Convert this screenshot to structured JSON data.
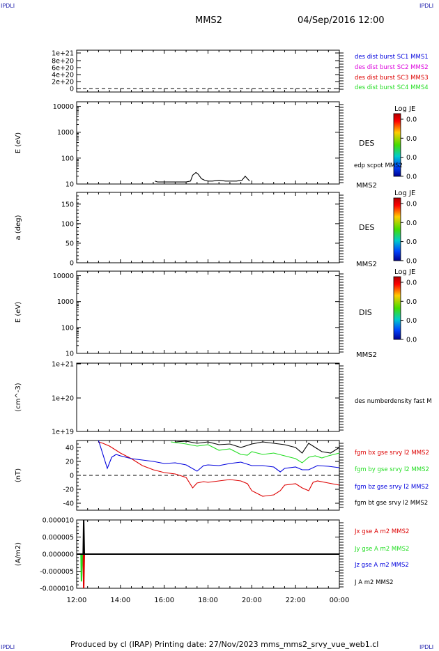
{
  "corner_labels": {
    "top_left": "IPDLI",
    "top_right": "IPDLI",
    "bottom_left": "IPDLI",
    "bottom_right": "IPDLI"
  },
  "header": {
    "spacecraft": "MMS2",
    "date": "04/Sep/2016 12:00"
  },
  "footer": {
    "text": "Produced by cl (IRAP)   Printing date: 27/Nov/2023   mms_mms2_srvy_vue_web1.cl"
  },
  "colors": {
    "black": "#000000",
    "red": "#dd0000",
    "green": "#22dd22",
    "blue": "#0000dd",
    "magenta": "#dd00dd"
  },
  "chart_data": [
    {
      "type": "line",
      "ylabel": "",
      "yticks": [
        "1e+21",
        "8e+20",
        "6e+20",
        "4e+20",
        "2e+20",
        "0"
      ],
      "series": [],
      "legend": [
        {
          "name": "des dist burst SC1 MMS1",
          "color": "#0000dd"
        },
        {
          "name": "des dist burst SC2 MMS2",
          "color": "#dd00dd"
        },
        {
          "name": "des dist burst SC3 MMS3",
          "color": "#dd0000"
        },
        {
          "name": "des dist burst SC4 MMS4",
          "color": "#22dd22"
        }
      ]
    },
    {
      "type": "line",
      "ylabel": "E (eV)",
      "yscale": "log",
      "yticks": [
        "10000",
        "1000",
        "100",
        "10"
      ],
      "ylim": [
        10,
        15000
      ],
      "right_label": "DES",
      "right_sublabel": "MMS2",
      "series": [
        {
          "name": "edp scpot MMS2",
          "color": "#000000",
          "x": [
            15.58,
            15.7,
            16.0,
            16.5,
            17.0,
            17.2,
            17.3,
            17.45,
            17.55,
            17.7,
            17.85,
            18.0,
            18.2,
            18.5,
            18.8,
            19.0,
            19.3,
            19.55,
            19.7,
            19.8,
            19.9
          ],
          "y": [
            13,
            12,
            12,
            12,
            12,
            13,
            22,
            28,
            24,
            16,
            14,
            13,
            13,
            14,
            13,
            13,
            13,
            14,
            20,
            16,
            13
          ]
        }
      ],
      "colorbar": {
        "title": "Log JE",
        "ticks": [
          "0.0",
          "0.0",
          "0.0",
          "0.0"
        ]
      }
    },
    {
      "type": "heatmap",
      "ylabel": "a (deg)",
      "yticks": [
        "150",
        "100",
        "50",
        "0"
      ],
      "ylim": [
        0,
        180
      ],
      "right_label": "DES",
      "right_sublabel": "MMS2",
      "colorbar": {
        "title": "Log JE",
        "ticks": [
          "0.0",
          "0.0",
          "0.0",
          "0.0"
        ]
      }
    },
    {
      "type": "heatmap",
      "ylabel": "E (eV)",
      "yscale": "log",
      "yticks": [
        "10000",
        "1000",
        "100",
        "10"
      ],
      "ylim": [
        10,
        15000
      ],
      "right_label": "DIS",
      "right_sublabel": "MMS2",
      "colorbar": {
        "title": "Log JE",
        "ticks": [
          "0.0",
          "0.0",
          "0.0",
          "0.0"
        ]
      }
    },
    {
      "type": "line",
      "ylabel": "(cm^-3)",
      "yscale": "log",
      "yticks": [
        "1e+21",
        "1e+20",
        "1e+19"
      ],
      "series": [],
      "legend": [
        {
          "name": "des numberdensity fast M",
          "color": "#000000"
        }
      ]
    },
    {
      "type": "line",
      "ylabel": "(nT)",
      "yticks": [
        "40",
        "20",
        "0",
        "-20",
        "-40"
      ],
      "ylim": [
        -50,
        50
      ],
      "series": [
        {
          "name": "fgm bx gse srvy l2 MMS2",
          "color": "#dd0000",
          "x": [
            13.0,
            13.2,
            13.5,
            13.8,
            14.0,
            14.5,
            15.0,
            15.5,
            16.0,
            16.5,
            17.0,
            17.3,
            17.5,
            17.8,
            18.0,
            18.5,
            19.0,
            19.5,
            19.8,
            20.0,
            20.5,
            21.0,
            21.3,
            21.5,
            22.0,
            22.3,
            22.6,
            22.8,
            23.0,
            23.5,
            24.0
          ],
          "y": [
            48,
            46,
            42,
            36,
            32,
            24,
            14,
            8,
            4,
            2,
            -3,
            -18,
            -11,
            -9,
            -10,
            -8,
            -6,
            -8,
            -12,
            -22,
            -30,
            -28,
            -22,
            -14,
            -12,
            -18,
            -22,
            -10,
            -8,
            -11,
            -14
          ]
        },
        {
          "name": "fgm by gse srvy l2 MMS2",
          "color": "#22dd22",
          "x": [
            16.3,
            16.8,
            17.0,
            17.5,
            18.0,
            18.5,
            19.0,
            19.5,
            19.8,
            20.0,
            20.5,
            21.0,
            21.5,
            22.0,
            22.3,
            22.6,
            22.9,
            23.2,
            23.5,
            24.0
          ],
          "y": [
            48,
            46,
            45,
            42,
            44,
            36,
            38,
            30,
            29,
            34,
            30,
            32,
            28,
            24,
            18,
            26,
            28,
            25,
            28,
            32
          ]
        },
        {
          "name": "fgm bz gse srvy l2 MMS2",
          "color": "#0000dd",
          "x": [
            13.0,
            13.1,
            13.4,
            13.6,
            13.8,
            14.0,
            14.5,
            15.0,
            15.5,
            16.0,
            16.5,
            17.0,
            17.5,
            17.8,
            18.0,
            18.5,
            19.0,
            19.5,
            20.0,
            20.5,
            21.0,
            21.3,
            21.5,
            22.0,
            22.3,
            22.6,
            23.0,
            23.5,
            24.0
          ],
          "y": [
            50,
            40,
            10,
            26,
            30,
            28,
            24,
            22,
            20,
            17,
            18,
            15,
            6,
            14,
            15,
            14,
            17,
            19,
            14,
            14,
            12,
            5,
            10,
            12,
            8,
            8,
            14,
            13,
            11
          ]
        },
        {
          "name": "fgm bt gse srvy l2 MMS2",
          "color": "#000000",
          "x": [
            16.5,
            17.0,
            17.5,
            18.0,
            18.5,
            19.0,
            19.5,
            20.0,
            20.5,
            21.0,
            21.5,
            22.0,
            22.3,
            22.6,
            22.9,
            23.2,
            23.6,
            24.0
          ],
          "y": [
            48,
            49,
            46,
            48,
            44,
            45,
            40,
            45,
            48,
            46,
            44,
            40,
            32,
            46,
            40,
            34,
            32,
            40
          ]
        }
      ]
    },
    {
      "type": "line",
      "ylabel": "(A/m2)",
      "yticks": [
        "0.000010",
        "0.000005",
        "0.000000",
        "-0.000005",
        "-0.000010"
      ],
      "ylim": [
        -1e-05,
        1e-05
      ],
      "xticks": [
        "12:00",
        "14:00",
        "16:00",
        "18:00",
        "20:00",
        "22:00",
        "00:00"
      ],
      "series": [
        {
          "name": "Jx gse A m2 MMS2",
          "color": "#dd0000",
          "x": [
            12.0,
            12.3,
            12.32,
            12.35,
            24.0
          ],
          "y": [
            0,
            0,
            -1e-05,
            0,
            0
          ]
        },
        {
          "name": "Jy gse A m2 MMS2",
          "color": "#22dd22",
          "x": [
            12.0,
            12.2,
            12.22,
            12.25,
            24.0
          ],
          "y": [
            0,
            0,
            -8e-06,
            0,
            0
          ]
        },
        {
          "name": "Jz gse A m2 MMS2",
          "color": "#0000dd",
          "x": [
            12.0,
            24.0
          ],
          "y": [
            0,
            0
          ]
        },
        {
          "name": "J A m2 MMS2",
          "color": "#000000",
          "x": [
            12.0,
            12.3,
            12.32,
            12.35,
            24.0
          ],
          "y": [
            0,
            0,
            1e-05,
            0,
            0
          ]
        }
      ]
    }
  ]
}
